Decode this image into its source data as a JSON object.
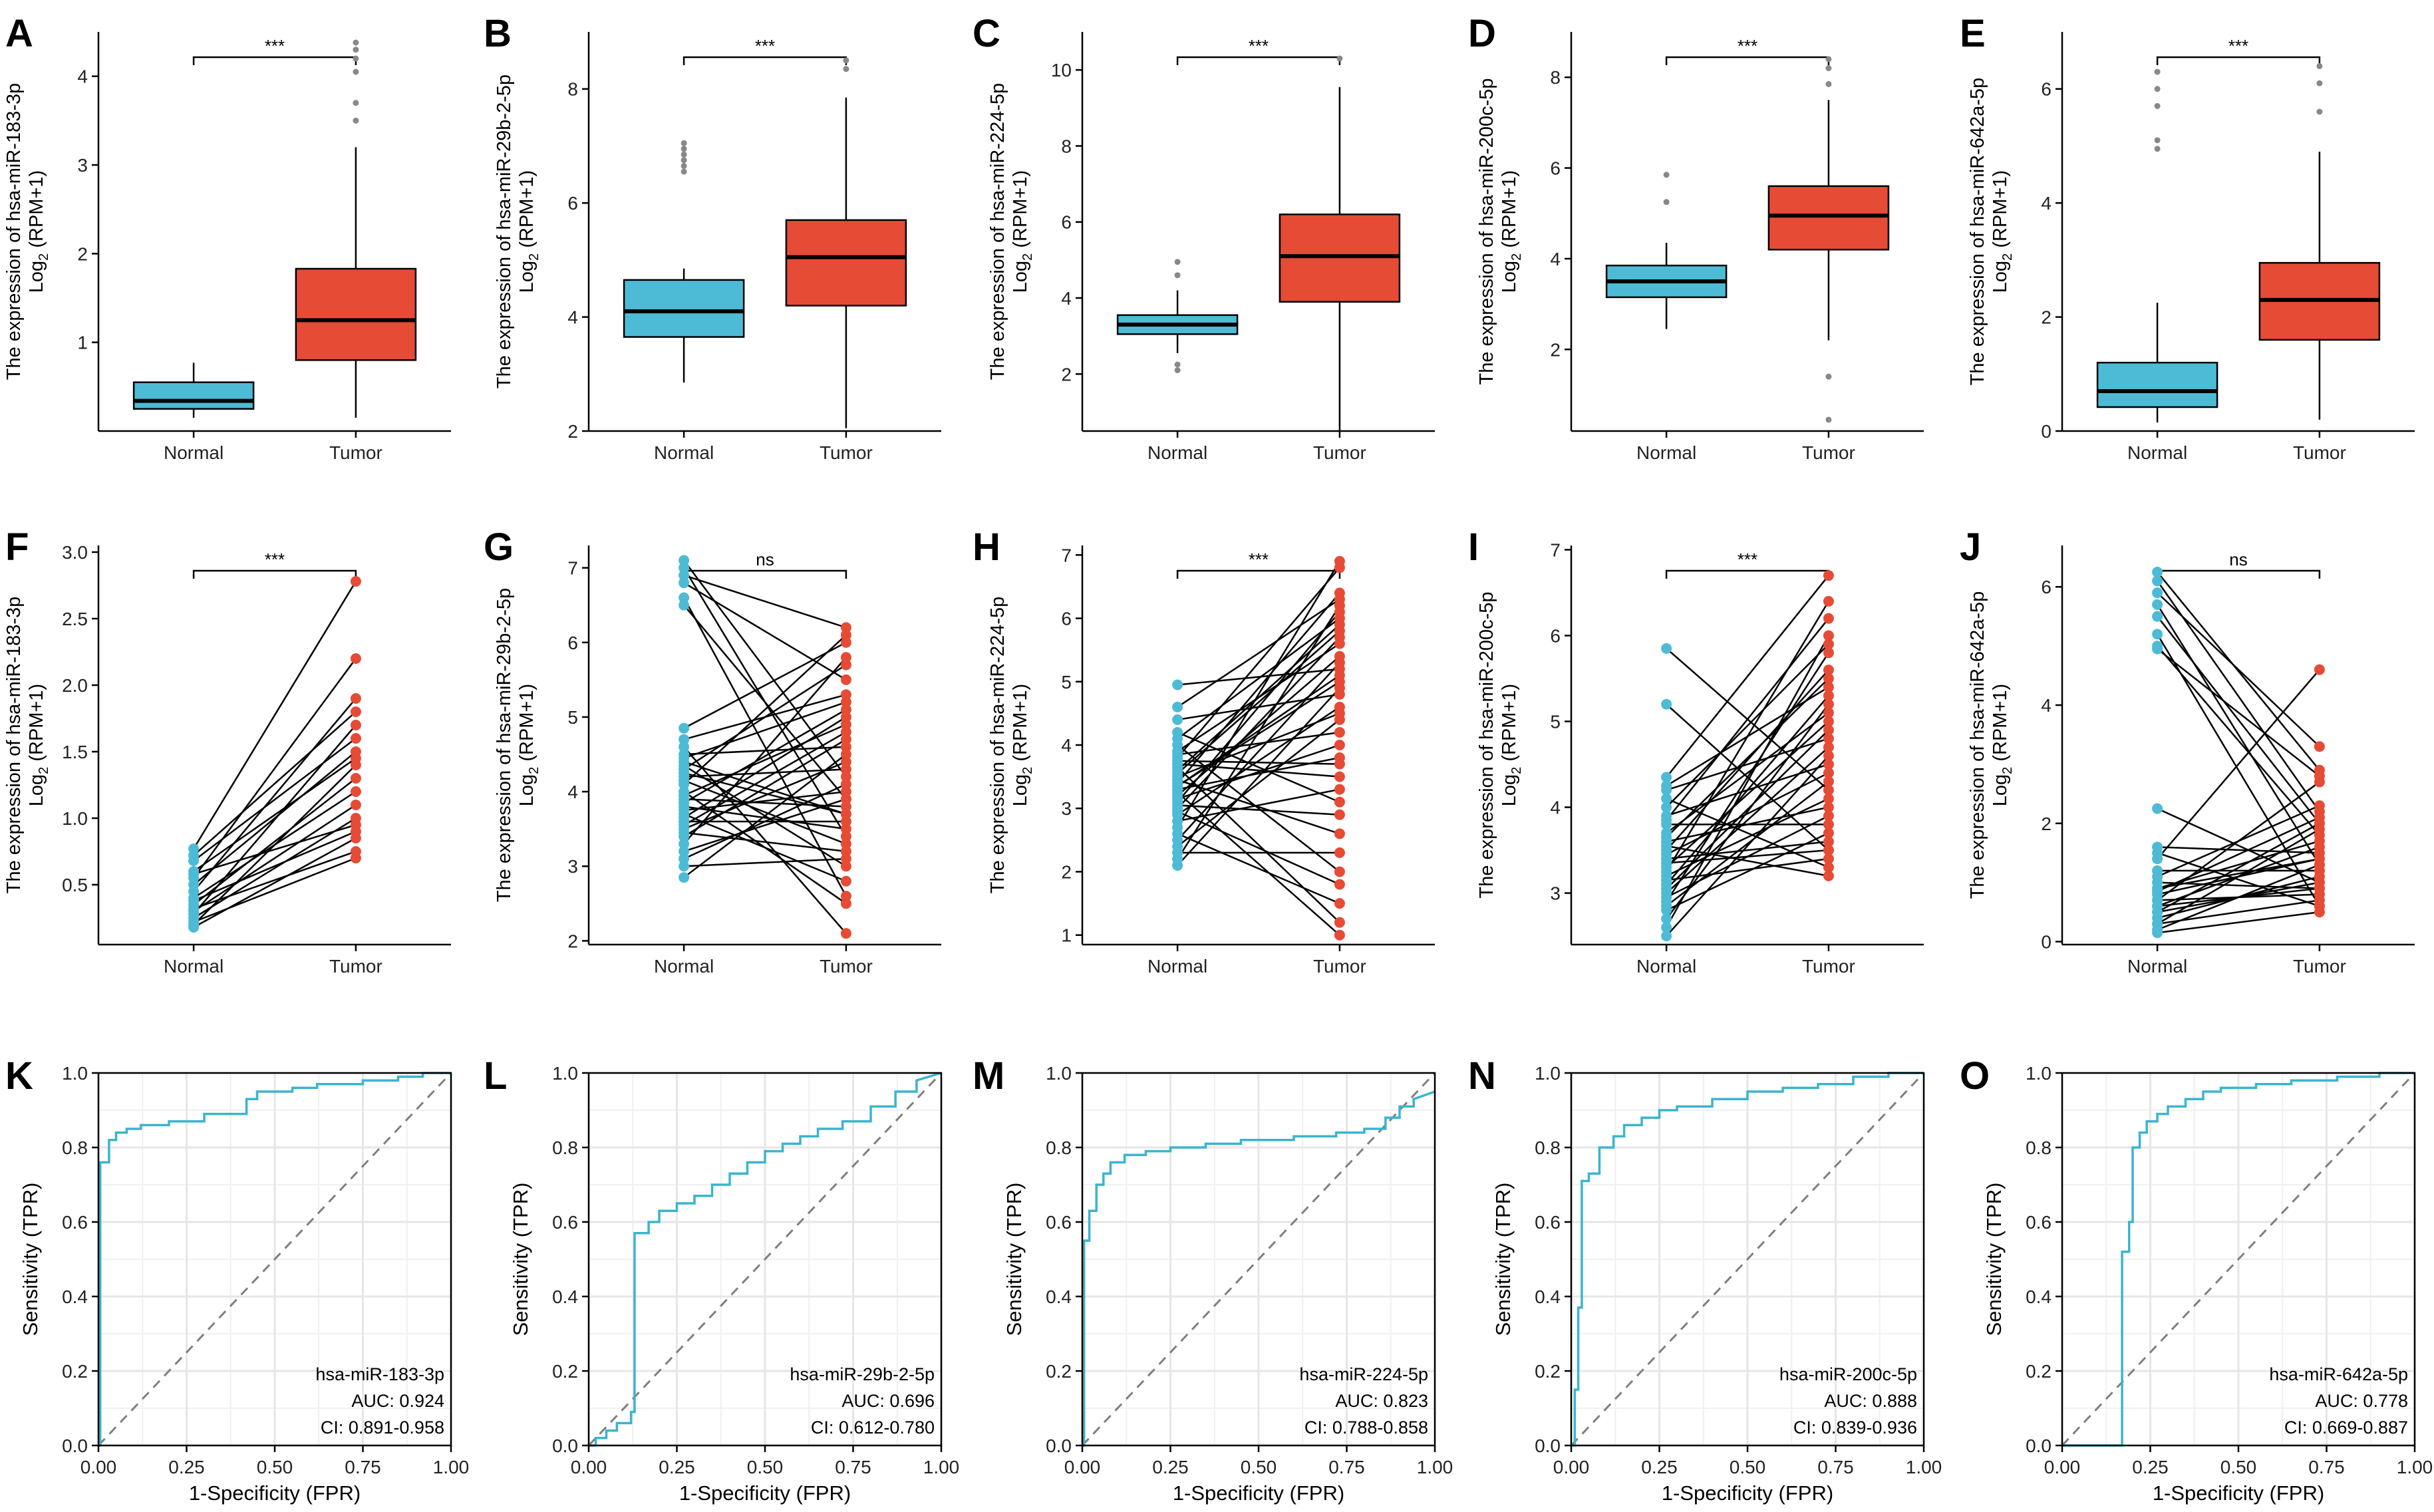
{
  "colors": {
    "normal": "#4DBBD5",
    "tumor": "#E64B35",
    "roc": "#3BB4CE",
    "grid": "#e6e6e6",
    "diagonal": "#7f7f7f"
  },
  "labels": {
    "roc_xlabel": "1-Specificity (FPR)",
    "roc_ylabel": "Sensitivity (TPR)",
    "y_prefix": "The expression of ",
    "y_sub_a": "Log",
    "y_sub_b": "2",
    "y_sub_c": " (RPM+1)"
  },
  "chart_data": [
    {
      "type": "box",
      "panel": "A",
      "gene": "hsa-miR-183-3p",
      "ylim": [
        0,
        4.5
      ],
      "yticks": [
        1,
        2,
        3,
        4
      ],
      "yticklabels": [
        "1",
        "2",
        "3",
        "4"
      ],
      "categories": [
        "Normal",
        "Tumor"
      ],
      "significance": "***",
      "groups": [
        {
          "name": "Normal",
          "q1": 0.25,
          "median": 0.34,
          "q3": 0.55,
          "whisker_low": 0.15,
          "whisker_high": 0.77,
          "outliers": []
        },
        {
          "name": "Tumor",
          "q1": 0.8,
          "median": 1.25,
          "q3": 1.83,
          "whisker_low": 0.15,
          "whisker_high": 3.2,
          "outliers": [
            3.5,
            3.7,
            4.05,
            4.2,
            4.3,
            4.38
          ]
        }
      ]
    },
    {
      "type": "box",
      "panel": "B",
      "gene": "hsa-miR-29b-2-5p",
      "ylim": [
        2,
        9
      ],
      "yticks": [
        2,
        4,
        6,
        8
      ],
      "yticklabels": [
        "2",
        "4",
        "6",
        "8"
      ],
      "categories": [
        "Normal",
        "Tumor"
      ],
      "significance": "***",
      "groups": [
        {
          "name": "Normal",
          "q1": 3.65,
          "median": 4.1,
          "q3": 4.65,
          "whisker_low": 2.85,
          "whisker_high": 4.85,
          "outliers": [
            6.55,
            6.65,
            6.75,
            6.85,
            6.95,
            7.05
          ]
        },
        {
          "name": "Tumor",
          "q1": 4.2,
          "median": 5.05,
          "q3": 5.7,
          "whisker_low": 2.05,
          "whisker_high": 7.85,
          "outliers": [
            8.35,
            8.5
          ]
        }
      ]
    },
    {
      "type": "box",
      "panel": "C",
      "gene": "hsa-miR-224-5p",
      "ylim": [
        0.5,
        11
      ],
      "yticks": [
        2,
        4,
        6,
        8,
        10
      ],
      "yticklabels": [
        "2",
        "4",
        "6",
        "8",
        "10"
      ],
      "categories": [
        "Normal",
        "Tumor"
      ],
      "significance": "***",
      "groups": [
        {
          "name": "Normal",
          "q1": 3.05,
          "median": 3.3,
          "q3": 3.55,
          "whisker_low": 2.55,
          "whisker_high": 4.2,
          "outliers": [
            2.1,
            2.25,
            4.6,
            4.95
          ]
        },
        {
          "name": "Tumor",
          "q1": 3.9,
          "median": 5.1,
          "q3": 6.2,
          "whisker_low": 0.5,
          "whisker_high": 9.55,
          "outliers": [
            10.3
          ]
        }
      ]
    },
    {
      "type": "box",
      "panel": "D",
      "gene": "hsa-miR-200c-5p",
      "ylim": [
        0.2,
        9
      ],
      "yticks": [
        2,
        4,
        6,
        8
      ],
      "yticklabels": [
        "2",
        "4",
        "6",
        "8"
      ],
      "categories": [
        "Normal",
        "Tumor"
      ],
      "significance": "***",
      "groups": [
        {
          "name": "Normal",
          "q1": 3.15,
          "median": 3.5,
          "q3": 3.85,
          "whisker_low": 2.45,
          "whisker_high": 4.35,
          "outliers": [
            5.25,
            5.85
          ]
        },
        {
          "name": "Tumor",
          "q1": 4.2,
          "median": 4.95,
          "q3": 5.6,
          "whisker_low": 2.2,
          "whisker_high": 7.5,
          "outliers": [
            0.45,
            1.4,
            7.85,
            8.2,
            8.4
          ]
        }
      ]
    },
    {
      "type": "box",
      "panel": "E",
      "gene": "hsa-miR-642a-5p",
      "ylim": [
        0,
        7
      ],
      "yticks": [
        0,
        2,
        4,
        6
      ],
      "yticklabels": [
        "0",
        "2",
        "4",
        "6"
      ],
      "categories": [
        "Normal",
        "Tumor"
      ],
      "significance": "***",
      "groups": [
        {
          "name": "Normal",
          "q1": 0.42,
          "median": 0.7,
          "q3": 1.2,
          "whisker_low": 0.15,
          "whisker_high": 2.25,
          "outliers": [
            4.95,
            5.1,
            5.7,
            6.0,
            6.3
          ]
        },
        {
          "name": "Tumor",
          "q1": 1.6,
          "median": 2.3,
          "q3": 2.95,
          "whisker_low": 0.2,
          "whisker_high": 4.9,
          "outliers": [
            5.6,
            6.1,
            6.4
          ]
        }
      ]
    },
    {
      "type": "paired",
      "panel": "F",
      "gene": "hsa-miR-183-3p",
      "ylim": [
        0.05,
        3.05
      ],
      "yticks": [
        0.5,
        1.0,
        1.5,
        2.0,
        2.5,
        3.0
      ],
      "yticklabels": [
        "0.5",
        "1.0",
        "1.5",
        "2.0",
        "2.5",
        "3.0"
      ],
      "categories": [
        "Normal",
        "Tumor"
      ],
      "significance": "***",
      "normal": [
        0.77,
        0.72,
        0.68,
        0.6,
        0.58,
        0.55,
        0.5,
        0.45,
        0.4,
        0.38,
        0.35,
        0.32,
        0.3,
        0.28,
        0.25,
        0.22,
        0.2,
        0.18
      ],
      "tumor": [
        2.78,
        1.8,
        1.6,
        1.45,
        0.95,
        2.2,
        1.5,
        1.9,
        1.2,
        0.9,
        1.3,
        0.75,
        1.1,
        1.7,
        1.0,
        0.7,
        1.4,
        0.85
      ]
    },
    {
      "type": "paired",
      "panel": "G",
      "gene": "hsa-miR-29b-2-5p",
      "ylim": [
        1.95,
        7.3
      ],
      "yticks": [
        2,
        3,
        4,
        5,
        6,
        7
      ],
      "yticklabels": [
        "2",
        "3",
        "4",
        "5",
        "6",
        "7"
      ],
      "categories": [
        "Normal",
        "Tumor"
      ],
      "significance": "ns",
      "normal": [
        7.1,
        7.0,
        6.9,
        6.8,
        6.6,
        6.5,
        4.85,
        4.7,
        4.6,
        4.5,
        4.4,
        4.35,
        4.3,
        4.2,
        4.15,
        4.1,
        4.0,
        3.95,
        3.9,
        3.85,
        3.8,
        3.75,
        3.7,
        3.65,
        3.6,
        3.5,
        3.45,
        3.4,
        3.3,
        3.2,
        3.1,
        3.0,
        2.85,
        4.25,
        4.45,
        3.55
      ],
      "tumor": [
        4.2,
        3.4,
        6.2,
        5.5,
        2.6,
        3.9,
        6.0,
        5.3,
        2.1,
        4.6,
        3.7,
        3.0,
        5.7,
        4.3,
        3.3,
        6.1,
        2.5,
        4.9,
        3.8,
        5.1,
        3.5,
        4.0,
        2.8,
        5.0,
        3.6,
        4.4,
        3.2,
        4.7,
        5.8,
        3.9,
        4.1,
        3.1,
        4.5,
        3.7,
        5.2,
        4.8
      ]
    },
    {
      "type": "paired",
      "panel": "H",
      "gene": "hsa-miR-224-5p",
      "ylim": [
        0.85,
        7.15
      ],
      "yticks": [
        1,
        2,
        3,
        4,
        5,
        6,
        7
      ],
      "yticklabels": [
        "1",
        "2",
        "3",
        "4",
        "5",
        "6",
        "7"
      ],
      "categories": [
        "Normal",
        "Tumor"
      ],
      "significance": "***",
      "normal": [
        4.95,
        4.6,
        4.4,
        4.2,
        4.1,
        4.0,
        3.9,
        3.85,
        3.8,
        3.7,
        3.65,
        3.6,
        3.5,
        3.45,
        3.4,
        3.35,
        3.3,
        3.25,
        3.2,
        3.15,
        3.1,
        3.05,
        3.0,
        2.9,
        2.8,
        2.7,
        2.6,
        2.5,
        2.4,
        2.3,
        2.2,
        2.1,
        3.55,
        3.75,
        2.95,
        3.35
      ],
      "tumor": [
        5.2,
        6.3,
        4.8,
        3.1,
        6.0,
        2.0,
        5.6,
        4.2,
        6.8,
        3.5,
        1.2,
        5.9,
        4.5,
        2.6,
        6.4,
        5.0,
        3.8,
        1.0,
        5.4,
        4.0,
        6.1,
        2.9,
        5.7,
        4.6,
        3.3,
        6.9,
        1.5,
        5.3,
        4.4,
        2.3,
        6.2,
        4.9,
        5.8,
        3.7,
        1.8,
        5.1
      ]
    },
    {
      "type": "paired",
      "panel": "I",
      "gene": "hsa-miR-200c-5p",
      "ylim": [
        2.4,
        7.05
      ],
      "yticks": [
        3,
        4,
        5,
        6,
        7
      ],
      "yticklabels": [
        "3",
        "4",
        "5",
        "6",
        "7"
      ],
      "categories": [
        "Normal",
        "Tumor"
      ],
      "significance": "***",
      "normal": [
        5.85,
        5.2,
        4.35,
        4.25,
        4.2,
        4.1,
        4.0,
        3.9,
        3.85,
        3.8,
        3.7,
        3.6,
        3.55,
        3.5,
        3.45,
        3.4,
        3.3,
        3.25,
        3.2,
        3.15,
        3.1,
        3.0,
        2.95,
        2.9,
        2.85,
        2.8,
        2.7,
        2.6,
        2.5,
        3.35,
        3.65,
        3.05
      ],
      "tumor": [
        4.2,
        3.5,
        6.7,
        5.4,
        4.8,
        3.3,
        5.9,
        4.5,
        6.2,
        3.8,
        5.1,
        4.0,
        3.2,
        5.6,
        4.4,
        3.6,
        5.0,
        6.4,
        4.1,
        3.4,
        5.3,
        4.7,
        3.9,
        5.8,
        4.3,
        3.7,
        5.2,
        6.0,
        4.6,
        3.5,
        5.5,
        4.9
      ]
    },
    {
      "type": "paired",
      "panel": "J",
      "gene": "hsa-miR-642a-5p",
      "ylim": [
        -0.05,
        6.7
      ],
      "yticks": [
        0,
        2,
        4,
        6
      ],
      "yticklabels": [
        "0",
        "2",
        "4",
        "6"
      ],
      "categories": [
        "Normal",
        "Tumor"
      ],
      "significance": "ns",
      "normal": [
        6.25,
        6.1,
        5.9,
        5.7,
        5.5,
        5.2,
        5.0,
        4.95,
        2.25,
        1.6,
        1.4,
        1.2,
        1.1,
        1.0,
        0.9,
        0.85,
        0.8,
        0.7,
        0.6,
        0.5,
        0.4,
        0.3,
        0.2,
        0.15,
        0.7,
        0.5,
        0.3,
        1.5,
        0.9,
        0.6
      ],
      "tumor": [
        2.9,
        2.2,
        3.3,
        1.3,
        2.0,
        0.6,
        1.8,
        2.8,
        1.0,
        1.5,
        4.6,
        1.2,
        2.3,
        0.9,
        1.7,
        2.1,
        1.4,
        0.8,
        1.6,
        2.0,
        1.1,
        0.7,
        1.3,
        0.5,
        2.7,
        1.0,
        1.9,
        0.6,
        1.4,
        0.9
      ]
    },
    {
      "type": "roc",
      "panel": "K",
      "gene": "hsa-miR-183-3p",
      "auc_text": "AUC: 0.924",
      "ci_text": "CI: 0.891-0.958",
      "xlim": [
        0,
        1
      ],
      "ylim": [
        0,
        1
      ],
      "xticks": [
        0,
        0.25,
        0.5,
        0.75,
        1
      ],
      "xticklabels": [
        "0.00",
        "0.25",
        "0.50",
        "0.75",
        "1.00"
      ],
      "yticks": [
        0,
        0.2,
        0.4,
        0.6,
        0.8,
        1
      ],
      "yticklabels": [
        "0.0",
        "0.2",
        "0.4",
        "0.6",
        "0.8",
        "1.0"
      ],
      "fpr": [
        0,
        0.005,
        0.005,
        0.03,
        0.03,
        0.05,
        0.05,
        0.08,
        0.08,
        0.12,
        0.12,
        0.2,
        0.2,
        0.3,
        0.3,
        0.42,
        0.42,
        0.45,
        0.45,
        0.55,
        0.55,
        0.62,
        0.62,
        0.75,
        0.75,
        0.85,
        0.85,
        0.92,
        0.92,
        1.0
      ],
      "tpr": [
        0,
        0,
        0.76,
        0.76,
        0.82,
        0.82,
        0.84,
        0.84,
        0.85,
        0.85,
        0.86,
        0.86,
        0.87,
        0.87,
        0.89,
        0.89,
        0.93,
        0.93,
        0.95,
        0.95,
        0.96,
        0.96,
        0.97,
        0.97,
        0.98,
        0.98,
        0.99,
        0.99,
        1.0,
        1.0
      ]
    },
    {
      "type": "roc",
      "panel": "L",
      "gene": "hsa-miR-29b-2-5p",
      "auc_text": "AUC: 0.696",
      "ci_text": "CI: 0.612-0.780",
      "xlim": [
        0,
        1
      ],
      "ylim": [
        0,
        1
      ],
      "xticks": [
        0,
        0.25,
        0.5,
        0.75,
        1
      ],
      "xticklabels": [
        "0.00",
        "0.25",
        "0.50",
        "0.75",
        "1.00"
      ],
      "yticks": [
        0,
        0.2,
        0.4,
        0.6,
        0.8,
        1
      ],
      "yticklabels": [
        "0.0",
        "0.2",
        "0.4",
        "0.6",
        "0.8",
        "1.0"
      ],
      "fpr": [
        0,
        0.02,
        0.02,
        0.05,
        0.05,
        0.08,
        0.08,
        0.12,
        0.12,
        0.13,
        0.13,
        0.17,
        0.17,
        0.2,
        0.2,
        0.25,
        0.25,
        0.3,
        0.3,
        0.35,
        0.35,
        0.4,
        0.4,
        0.45,
        0.45,
        0.5,
        0.5,
        0.55,
        0.55,
        0.6,
        0.6,
        0.65,
        0.65,
        0.72,
        0.72,
        0.8,
        0.8,
        0.87,
        0.87,
        0.93,
        0.93,
        1.0
      ],
      "tpr": [
        0,
        0,
        0.02,
        0.02,
        0.04,
        0.04,
        0.06,
        0.06,
        0.09,
        0.09,
        0.57,
        0.57,
        0.6,
        0.6,
        0.63,
        0.63,
        0.65,
        0.65,
        0.67,
        0.67,
        0.7,
        0.7,
        0.73,
        0.73,
        0.76,
        0.76,
        0.79,
        0.79,
        0.81,
        0.81,
        0.83,
        0.83,
        0.85,
        0.85,
        0.87,
        0.87,
        0.91,
        0.91,
        0.95,
        0.95,
        0.98,
        1.0
      ]
    },
    {
      "type": "roc",
      "panel": "M",
      "gene": "hsa-miR-224-5p",
      "auc_text": "AUC: 0.823",
      "ci_text": "CI: 0.788-0.858",
      "xlim": [
        0,
        1
      ],
      "ylim": [
        0,
        1
      ],
      "xticks": [
        0,
        0.25,
        0.5,
        0.75,
        1
      ],
      "xticklabels": [
        "0.00",
        "0.25",
        "0.50",
        "0.75",
        "1.00"
      ],
      "yticks": [
        0,
        0.2,
        0.4,
        0.6,
        0.8,
        1
      ],
      "yticklabels": [
        "0.0",
        "0.2",
        "0.4",
        "0.6",
        "0.8",
        "1.0"
      ],
      "fpr": [
        0,
        0.005,
        0.005,
        0.02,
        0.02,
        0.04,
        0.04,
        0.06,
        0.06,
        0.08,
        0.08,
        0.12,
        0.12,
        0.18,
        0.18,
        0.25,
        0.25,
        0.35,
        0.35,
        0.45,
        0.45,
        0.6,
        0.6,
        0.72,
        0.72,
        0.8,
        0.8,
        0.86,
        0.86,
        0.9,
        0.9,
        0.94,
        0.94,
        1.0
      ],
      "tpr": [
        0,
        0,
        0.55,
        0.55,
        0.63,
        0.63,
        0.7,
        0.7,
        0.73,
        0.73,
        0.76,
        0.76,
        0.78,
        0.78,
        0.79,
        0.79,
        0.8,
        0.8,
        0.81,
        0.81,
        0.82,
        0.82,
        0.83,
        0.83,
        0.84,
        0.84,
        0.85,
        0.85,
        0.88,
        0.88,
        0.91,
        0.91,
        0.93,
        0.95
      ]
    },
    {
      "type": "roc",
      "panel": "N",
      "gene": "hsa-miR-200c-5p",
      "auc_text": "AUC: 0.888",
      "ci_text": "CI: 0.839-0.936",
      "xlim": [
        0,
        1
      ],
      "ylim": [
        0,
        1
      ],
      "xticks": [
        0,
        0.25,
        0.5,
        0.75,
        1
      ],
      "xticklabels": [
        "0.00",
        "0.25",
        "0.50",
        "0.75",
        "1.00"
      ],
      "yticks": [
        0,
        0.2,
        0.4,
        0.6,
        0.8,
        1
      ],
      "yticklabels": [
        "0.0",
        "0.2",
        "0.4",
        "0.6",
        "0.8",
        "1.0"
      ],
      "fpr": [
        0,
        0.01,
        0.01,
        0.02,
        0.02,
        0.03,
        0.03,
        0.05,
        0.05,
        0.08,
        0.08,
        0.12,
        0.12,
        0.15,
        0.15,
        0.2,
        0.2,
        0.25,
        0.25,
        0.3,
        0.3,
        0.4,
        0.4,
        0.5,
        0.5,
        0.6,
        0.6,
        0.7,
        0.7,
        0.8,
        0.8,
        0.9,
        0.9,
        1.0
      ],
      "tpr": [
        0,
        0,
        0.15,
        0.15,
        0.37,
        0.37,
        0.71,
        0.71,
        0.73,
        0.73,
        0.8,
        0.8,
        0.83,
        0.83,
        0.86,
        0.86,
        0.88,
        0.88,
        0.9,
        0.9,
        0.91,
        0.91,
        0.93,
        0.93,
        0.95,
        0.95,
        0.96,
        0.96,
        0.97,
        0.97,
        0.99,
        0.99,
        1.0,
        1.0
      ]
    },
    {
      "type": "roc",
      "panel": "O",
      "gene": "hsa-miR-642a-5p",
      "auc_text": "AUC: 0.778",
      "ci_text": "CI: 0.669-0.887",
      "xlim": [
        0,
        1
      ],
      "ylim": [
        0,
        1
      ],
      "xticks": [
        0,
        0.25,
        0.5,
        0.75,
        1
      ],
      "xticklabels": [
        "0.00",
        "0.25",
        "0.50",
        "0.75",
        "1.00"
      ],
      "yticks": [
        0,
        0.2,
        0.4,
        0.6,
        0.8,
        1
      ],
      "yticklabels": [
        "0.0",
        "0.2",
        "0.4",
        "0.6",
        "0.8",
        "1.0"
      ],
      "fpr": [
        0,
        0.15,
        0.17,
        0.17,
        0.19,
        0.19,
        0.2,
        0.2,
        0.22,
        0.22,
        0.24,
        0.24,
        0.27,
        0.27,
        0.3,
        0.3,
        0.35,
        0.35,
        0.4,
        0.4,
        0.45,
        0.45,
        0.55,
        0.55,
        0.65,
        0.65,
        0.78,
        0.78,
        0.9,
        0.9,
        1.0
      ],
      "tpr": [
        0,
        0,
        0,
        0.52,
        0.52,
        0.6,
        0.6,
        0.8,
        0.8,
        0.84,
        0.84,
        0.87,
        0.87,
        0.89,
        0.89,
        0.91,
        0.91,
        0.93,
        0.93,
        0.95,
        0.95,
        0.96,
        0.96,
        0.97,
        0.97,
        0.98,
        0.98,
        0.99,
        0.99,
        1.0,
        1.0
      ]
    }
  ]
}
